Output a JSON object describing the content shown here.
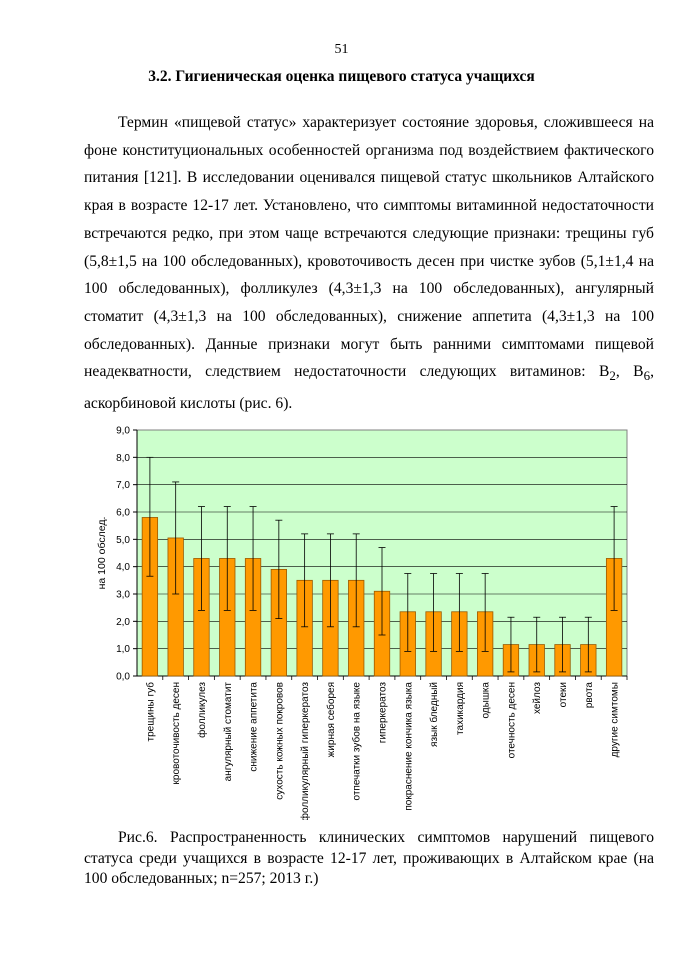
{
  "page_number": "51",
  "heading": "3.2. Гигиеническая оценка пищевого статуса учащихся",
  "paragraph": {
    "text": "Термин «пищевой статус» характеризует состояние здоровья, сложившееся на фоне конституциональных особенностей организма под воздействием фактического питания [121]. В исследовании оценивался пищевой статус школьников Алтайского края в возрасте 12-17 лет. Установлено, что симптомы витаминной недостаточности встречаются редко, при этом чаще встречаются следующие признаки: трещины губ (5,8±1,5 на 100 обследованных), кровоточивость десен при чистке зубов (5,1±1,4 на 100 обследованных), фолликулез (4,3±1,3 на 100 обследованных), ангулярный стоматит (4,3±1,3 на 100 обследованных), снижение аппетита (4,3±1,3 на 100 обследованных). Данные признаки могут быть ранними симптомами пищевой неадекватности, следствием недостаточности следующих витаминов: B",
    "sub1": "2",
    "sep": ", B",
    "sub2": "6",
    "tail": ", аскорбиновой кислоты (рис. 6)."
  },
  "chart_data": {
    "type": "bar",
    "ylabel": "на 100 обслед.",
    "ylim": [
      0,
      9
    ],
    "yticks": [
      "0,0",
      "1,0",
      "2,0",
      "3,0",
      "4,0",
      "5,0",
      "6,0",
      "7,0",
      "8,0",
      "9,0"
    ],
    "grid": true,
    "plot_background": "#ccffcc",
    "bar_color": "#ff9900",
    "bar_border": "#9a5a00",
    "categories": [
      "трещины губ",
      "кровоточивость десен",
      "фолликулез",
      "ангулярный стоматит",
      "снижение аппетита",
      "сухость кожных покровов",
      "фолликулярный гиперкератоз",
      "жирная себорея",
      "отпечатки зубов на языке",
      "гиперкератоз",
      "покраснение кончика языка",
      "язык бледный",
      "тахикардия",
      "одышка",
      "отечность десен",
      "хейлоз",
      "отеки",
      "рвота",
      "другие симтомы"
    ],
    "values": [
      5.8,
      5.05,
      4.3,
      4.3,
      4.3,
      3.9,
      3.5,
      3.5,
      3.5,
      3.1,
      2.35,
      2.35,
      2.35,
      2.35,
      1.15,
      1.15,
      1.15,
      1.15,
      4.3
    ],
    "err_low": [
      3.65,
      3.0,
      2.4,
      2.4,
      2.4,
      2.1,
      1.8,
      1.8,
      1.8,
      1.5,
      0.9,
      0.9,
      0.9,
      0.9,
      0.15,
      0.15,
      0.15,
      0.15,
      2.4
    ],
    "err_high": [
      8.0,
      7.1,
      6.2,
      6.2,
      6.2,
      5.7,
      5.2,
      5.2,
      5.2,
      4.7,
      3.75,
      3.75,
      3.75,
      3.75,
      2.15,
      2.15,
      2.15,
      2.15,
      6.2
    ]
  },
  "caption": "Рис.6. Распространенность клинических симптомов нарушений пищевого статуса среди учащихся в возрасте 12-17 лет, проживающих в Алтайском крае (на 100 обследованных; n=257; 2013 г.)"
}
